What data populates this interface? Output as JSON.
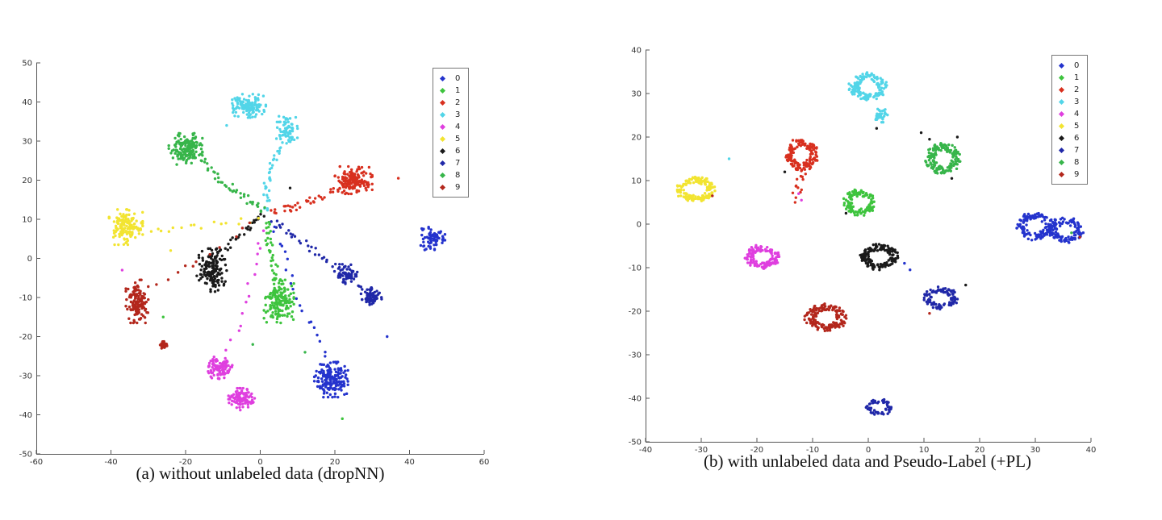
{
  "figure": {
    "background": "#ffffff"
  },
  "chart_data": [
    {
      "type": "scatter",
      "caption": "(a) without unlabeled data (dropNN)",
      "xlabel": "",
      "ylabel": "",
      "xlim": [
        -60,
        60
      ],
      "ylim": [
        -50,
        50
      ],
      "xticks": [
        -60,
        -40,
        -20,
        0,
        20,
        40,
        60
      ],
      "yticks": [
        -50,
        -40,
        -30,
        -20,
        -10,
        0,
        10,
        20,
        30,
        40,
        50
      ],
      "grid": false,
      "legend_position": "top-right",
      "classes": [
        {
          "label": "0",
          "color": "#2433cd"
        },
        {
          "label": "1",
          "color": "#3ec43e"
        },
        {
          "label": "2",
          "color": "#d8301f"
        },
        {
          "label": "3",
          "color": "#52d5e8"
        },
        {
          "label": "4",
          "color": "#df3fdf"
        },
        {
          "label": "5",
          "color": "#f2e431"
        },
        {
          "label": "6",
          "color": "#1a1a1a"
        },
        {
          "label": "7",
          "color": "#2028a8"
        },
        {
          "label": "8",
          "color": "#37b54a"
        },
        {
          "label": "9",
          "color": "#b3271c"
        }
      ],
      "clusters": [
        {
          "class": "3",
          "cx": -3,
          "cy": 39,
          "rx": 4.5,
          "ry": 3,
          "n": 130
        },
        {
          "class": "3",
          "cx": 7,
          "cy": 33,
          "rx": 3,
          "ry": 3.5,
          "n": 70
        },
        {
          "class": "8",
          "cx": -20,
          "cy": 28,
          "rx": 4.5,
          "ry": 4,
          "n": 160
        },
        {
          "class": "2",
          "cx": 25,
          "cy": 20,
          "rx": 5,
          "ry": 3.5,
          "n": 160
        },
        {
          "class": "5",
          "cx": -36,
          "cy": 8,
          "rx": 4.5,
          "ry": 4.5,
          "n": 150
        },
        {
          "class": "0",
          "cx": 46,
          "cy": 5,
          "rx": 3.5,
          "ry": 3,
          "n": 70
        },
        {
          "class": "6",
          "cx": -13,
          "cy": -3,
          "rx": 4,
          "ry": 5.5,
          "n": 150
        },
        {
          "class": "9",
          "cx": -33,
          "cy": -11,
          "rx": 3,
          "ry": 5.5,
          "n": 140
        },
        {
          "class": "9",
          "cx": -26,
          "cy": -22,
          "rx": 1,
          "ry": 1,
          "n": 45
        },
        {
          "class": "1",
          "cx": 5,
          "cy": -11,
          "rx": 4,
          "ry": 5.5,
          "n": 160
        },
        {
          "class": "7",
          "cx": 23,
          "cy": -4,
          "rx": 3,
          "ry": 2.5,
          "n": 60
        },
        {
          "class": "7",
          "cx": 30,
          "cy": -10,
          "rx": 3,
          "ry": 2.5,
          "n": 70
        },
        {
          "class": "0",
          "cx": 19,
          "cy": -31,
          "rx": 4.5,
          "ry": 4.5,
          "n": 170
        },
        {
          "class": "4",
          "cx": -11,
          "cy": -28,
          "rx": 3.5,
          "ry": 2.8,
          "n": 100
        },
        {
          "class": "4",
          "cx": -5,
          "cy": -36,
          "rx": 3.5,
          "ry": 2.8,
          "n": 100
        }
      ],
      "trails": [
        {
          "class": "3",
          "from": [
            7,
            30
          ],
          "via": [
            0,
            21
          ],
          "to": [
            2,
            12
          ],
          "n": 35
        },
        {
          "class": "8",
          "from": [
            -16,
            25
          ],
          "via": [
            -7,
            17
          ],
          "to": [
            1,
            12
          ],
          "n": 40
        },
        {
          "class": "2",
          "from": [
            21,
            18
          ],
          "via": [
            11,
            13
          ],
          "to": [
            3,
            12
          ],
          "n": 35
        },
        {
          "class": "6",
          "from": [
            -11,
            1
          ],
          "via": [
            -5,
            7
          ],
          "to": [
            1,
            11
          ],
          "n": 28
        },
        {
          "class": "1",
          "from": [
            5,
            -6
          ],
          "via": [
            2,
            2
          ],
          "to": [
            2,
            10
          ],
          "n": 32
        },
        {
          "class": "7",
          "from": [
            29,
            -9
          ],
          "via": [
            14,
            2
          ],
          "to": [
            3,
            10
          ],
          "n": 40
        },
        {
          "class": "5",
          "from": [
            -31,
            7
          ],
          "via": [
            -16,
            8
          ],
          "to": [
            0,
            10
          ],
          "n": 16
        },
        {
          "class": "4",
          "from": [
            -9,
            -25
          ],
          "via": [
            -2,
            -8
          ],
          "to": [
            1,
            9
          ],
          "n": 14
        },
        {
          "class": "0",
          "from": [
            18,
            -27
          ],
          "via": [
            9,
            -8
          ],
          "to": [
            3,
            9
          ],
          "n": 20
        },
        {
          "class": "9",
          "from": [
            -29,
            -7
          ],
          "via": [
            -14,
            1
          ],
          "to": [
            0,
            10
          ],
          "n": 10
        }
      ],
      "outliers": [
        {
          "class": "2",
          "x": 37,
          "y": 20.5
        },
        {
          "class": "8",
          "x": 12,
          "y": -24
        },
        {
          "class": "1",
          "x": -26,
          "y": -15
        },
        {
          "class": "1",
          "x": 22,
          "y": -41
        },
        {
          "class": "4",
          "x": -37,
          "y": -3
        },
        {
          "class": "9",
          "x": -18,
          "y": -2
        },
        {
          "class": "0",
          "x": 34,
          "y": -20
        },
        {
          "class": "8",
          "x": -2,
          "y": -22
        },
        {
          "class": "3",
          "x": -9,
          "y": 34
        },
        {
          "class": "5",
          "x": -24,
          "y": 2
        },
        {
          "class": "6",
          "x": 8,
          "y": 18
        }
      ]
    },
    {
      "type": "scatter",
      "caption": "(b) with unlabeled data and Pseudo-Label (+PL)",
      "xlabel": "",
      "ylabel": "",
      "xlim": [
        -40,
        40
      ],
      "ylim": [
        -50,
        40
      ],
      "xticks": [
        -40,
        -30,
        -20,
        -10,
        0,
        10,
        20,
        30,
        40
      ],
      "yticks": [
        -50,
        -40,
        -30,
        -20,
        -10,
        0,
        10,
        20,
        30,
        40
      ],
      "grid": false,
      "legend_position": "top-right",
      "classes": [
        {
          "label": "0",
          "color": "#2433cd"
        },
        {
          "label": "1",
          "color": "#3ec43e"
        },
        {
          "label": "2",
          "color": "#d8301f"
        },
        {
          "label": "3",
          "color": "#52d5e8"
        },
        {
          "label": "4",
          "color": "#df3fdf"
        },
        {
          "label": "5",
          "color": "#f2e431"
        },
        {
          "label": "6",
          "color": "#1a1a1a"
        },
        {
          "label": "7",
          "color": "#2028a8"
        },
        {
          "label": "8",
          "color": "#37b54a"
        },
        {
          "label": "9",
          "color": "#b3271c"
        }
      ],
      "clusters": [
        {
          "class": "3",
          "cx": 0,
          "cy": 31.5,
          "rx": 3.2,
          "ry": 3,
          "n": 150,
          "shape": "ring"
        },
        {
          "class": "3",
          "cx": 2,
          "cy": 25,
          "rx": 1.6,
          "ry": 1.6,
          "n": 30
        },
        {
          "class": "2",
          "cx": -12,
          "cy": 16,
          "rx": 2.8,
          "ry": 3.5,
          "n": 150,
          "shape": "ring"
        },
        {
          "class": "8",
          "cx": 13.5,
          "cy": 15,
          "rx": 3,
          "ry": 3.5,
          "n": 150,
          "shape": "ring"
        },
        {
          "class": "1",
          "cx": -1.5,
          "cy": 5,
          "rx": 2.8,
          "ry": 3,
          "n": 130,
          "shape": "ring"
        },
        {
          "class": "5",
          "cx": -31,
          "cy": 8,
          "rx": 3.6,
          "ry": 2.8,
          "n": 150,
          "shape": "ring"
        },
        {
          "class": "4",
          "cx": -19,
          "cy": -7.5,
          "rx": 3,
          "ry": 2.6,
          "n": 130,
          "shape": "ring"
        },
        {
          "class": "6",
          "cx": 2,
          "cy": -7.5,
          "rx": 3.2,
          "ry": 2.8,
          "n": 150,
          "shape": "ring"
        },
        {
          "class": "9",
          "cx": -7.5,
          "cy": -21.5,
          "rx": 3.6,
          "ry": 3,
          "n": 150,
          "shape": "ring"
        },
        {
          "class": "0",
          "cx": 30,
          "cy": -0.5,
          "rx": 3.2,
          "ry": 3,
          "n": 130,
          "shape": "ring"
        },
        {
          "class": "0",
          "cx": 35.5,
          "cy": -1.5,
          "rx": 3,
          "ry": 2.8,
          "n": 120,
          "shape": "ring"
        },
        {
          "class": "7",
          "cx": 13,
          "cy": -17,
          "rx": 3,
          "ry": 2.4,
          "n": 100,
          "shape": "ring"
        },
        {
          "class": "7",
          "cx": 2,
          "cy": -42,
          "rx": 2.4,
          "ry": 1.8,
          "n": 55,
          "shape": "ring"
        }
      ],
      "trails": [
        {
          "class": "2",
          "from": [
            -11.5,
            12.5
          ],
          "via": [
            -12.5,
            9
          ],
          "to": [
            -13.5,
            5
          ],
          "n": 14
        }
      ],
      "outliers": [
        {
          "class": "3",
          "x": -25,
          "y": 15
        },
        {
          "class": "6",
          "x": 11,
          "y": 19.5
        },
        {
          "class": "6",
          "x": 16,
          "y": 20
        },
        {
          "class": "6",
          "x": 9.5,
          "y": 21
        },
        {
          "class": "6",
          "x": 15,
          "y": 10.5
        },
        {
          "class": "0",
          "x": 6.5,
          "y": -9
        },
        {
          "class": "0",
          "x": 7.5,
          "y": -10.5
        },
        {
          "class": "9",
          "x": 38,
          "y": -3
        },
        {
          "class": "8",
          "x": 36.5,
          "y": -2
        },
        {
          "class": "9",
          "x": 11,
          "y": -20.5
        },
        {
          "class": "6",
          "x": -4,
          "y": 2.5
        },
        {
          "class": "6",
          "x": 1.5,
          "y": 22
        },
        {
          "class": "4",
          "x": -12.5,
          "y": 7
        },
        {
          "class": "4",
          "x": -12,
          "y": 5.5
        },
        {
          "class": "9",
          "x": -28,
          "y": 6.5
        },
        {
          "class": "6",
          "x": -15,
          "y": 12
        },
        {
          "class": "6",
          "x": 17.5,
          "y": -14
        }
      ]
    }
  ]
}
